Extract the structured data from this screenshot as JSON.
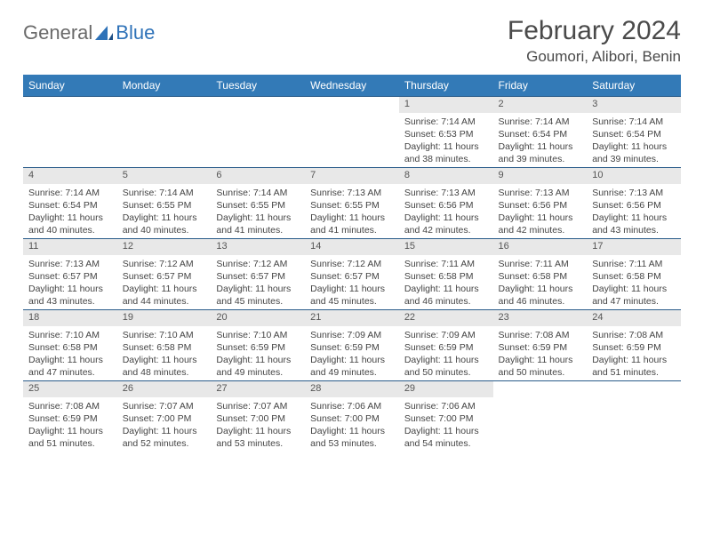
{
  "brand": {
    "part1": "General",
    "part2": "Blue"
  },
  "title": "February 2024",
  "location": "Goumori, Alibori, Benin",
  "colors": {
    "header_bg": "#337ab7",
    "header_text": "#ffffff",
    "daynum_bg": "#e8e8e8",
    "border": "#2a5c8a",
    "body_text": "#444444",
    "title_text": "#4a4a4a",
    "logo_gray": "#6a6a6a",
    "logo_blue": "#2e72b8"
  },
  "typography": {
    "title_fontsize": 30,
    "location_fontsize": 17,
    "header_fontsize": 12,
    "daynum_fontsize": 11,
    "detail_fontsize": 10.5
  },
  "days_of_week": [
    "Sunday",
    "Monday",
    "Tuesday",
    "Wednesday",
    "Thursday",
    "Friday",
    "Saturday"
  ],
  "weeks": [
    [
      null,
      null,
      null,
      null,
      {
        "num": "1",
        "sunrise": "Sunrise: 7:14 AM",
        "sunset": "Sunset: 6:53 PM",
        "daylight": "Daylight: 11 hours and 38 minutes."
      },
      {
        "num": "2",
        "sunrise": "Sunrise: 7:14 AM",
        "sunset": "Sunset: 6:54 PM",
        "daylight": "Daylight: 11 hours and 39 minutes."
      },
      {
        "num": "3",
        "sunrise": "Sunrise: 7:14 AM",
        "sunset": "Sunset: 6:54 PM",
        "daylight": "Daylight: 11 hours and 39 minutes."
      }
    ],
    [
      {
        "num": "4",
        "sunrise": "Sunrise: 7:14 AM",
        "sunset": "Sunset: 6:54 PM",
        "daylight": "Daylight: 11 hours and 40 minutes."
      },
      {
        "num": "5",
        "sunrise": "Sunrise: 7:14 AM",
        "sunset": "Sunset: 6:55 PM",
        "daylight": "Daylight: 11 hours and 40 minutes."
      },
      {
        "num": "6",
        "sunrise": "Sunrise: 7:14 AM",
        "sunset": "Sunset: 6:55 PM",
        "daylight": "Daylight: 11 hours and 41 minutes."
      },
      {
        "num": "7",
        "sunrise": "Sunrise: 7:13 AM",
        "sunset": "Sunset: 6:55 PM",
        "daylight": "Daylight: 11 hours and 41 minutes."
      },
      {
        "num": "8",
        "sunrise": "Sunrise: 7:13 AM",
        "sunset": "Sunset: 6:56 PM",
        "daylight": "Daylight: 11 hours and 42 minutes."
      },
      {
        "num": "9",
        "sunrise": "Sunrise: 7:13 AM",
        "sunset": "Sunset: 6:56 PM",
        "daylight": "Daylight: 11 hours and 42 minutes."
      },
      {
        "num": "10",
        "sunrise": "Sunrise: 7:13 AM",
        "sunset": "Sunset: 6:56 PM",
        "daylight": "Daylight: 11 hours and 43 minutes."
      }
    ],
    [
      {
        "num": "11",
        "sunrise": "Sunrise: 7:13 AM",
        "sunset": "Sunset: 6:57 PM",
        "daylight": "Daylight: 11 hours and 43 minutes."
      },
      {
        "num": "12",
        "sunrise": "Sunrise: 7:12 AM",
        "sunset": "Sunset: 6:57 PM",
        "daylight": "Daylight: 11 hours and 44 minutes."
      },
      {
        "num": "13",
        "sunrise": "Sunrise: 7:12 AM",
        "sunset": "Sunset: 6:57 PM",
        "daylight": "Daylight: 11 hours and 45 minutes."
      },
      {
        "num": "14",
        "sunrise": "Sunrise: 7:12 AM",
        "sunset": "Sunset: 6:57 PM",
        "daylight": "Daylight: 11 hours and 45 minutes."
      },
      {
        "num": "15",
        "sunrise": "Sunrise: 7:11 AM",
        "sunset": "Sunset: 6:58 PM",
        "daylight": "Daylight: 11 hours and 46 minutes."
      },
      {
        "num": "16",
        "sunrise": "Sunrise: 7:11 AM",
        "sunset": "Sunset: 6:58 PM",
        "daylight": "Daylight: 11 hours and 46 minutes."
      },
      {
        "num": "17",
        "sunrise": "Sunrise: 7:11 AM",
        "sunset": "Sunset: 6:58 PM",
        "daylight": "Daylight: 11 hours and 47 minutes."
      }
    ],
    [
      {
        "num": "18",
        "sunrise": "Sunrise: 7:10 AM",
        "sunset": "Sunset: 6:58 PM",
        "daylight": "Daylight: 11 hours and 47 minutes."
      },
      {
        "num": "19",
        "sunrise": "Sunrise: 7:10 AM",
        "sunset": "Sunset: 6:58 PM",
        "daylight": "Daylight: 11 hours and 48 minutes."
      },
      {
        "num": "20",
        "sunrise": "Sunrise: 7:10 AM",
        "sunset": "Sunset: 6:59 PM",
        "daylight": "Daylight: 11 hours and 49 minutes."
      },
      {
        "num": "21",
        "sunrise": "Sunrise: 7:09 AM",
        "sunset": "Sunset: 6:59 PM",
        "daylight": "Daylight: 11 hours and 49 minutes."
      },
      {
        "num": "22",
        "sunrise": "Sunrise: 7:09 AM",
        "sunset": "Sunset: 6:59 PM",
        "daylight": "Daylight: 11 hours and 50 minutes."
      },
      {
        "num": "23",
        "sunrise": "Sunrise: 7:08 AM",
        "sunset": "Sunset: 6:59 PM",
        "daylight": "Daylight: 11 hours and 50 minutes."
      },
      {
        "num": "24",
        "sunrise": "Sunrise: 7:08 AM",
        "sunset": "Sunset: 6:59 PM",
        "daylight": "Daylight: 11 hours and 51 minutes."
      }
    ],
    [
      {
        "num": "25",
        "sunrise": "Sunrise: 7:08 AM",
        "sunset": "Sunset: 6:59 PM",
        "daylight": "Daylight: 11 hours and 51 minutes."
      },
      {
        "num": "26",
        "sunrise": "Sunrise: 7:07 AM",
        "sunset": "Sunset: 7:00 PM",
        "daylight": "Daylight: 11 hours and 52 minutes."
      },
      {
        "num": "27",
        "sunrise": "Sunrise: 7:07 AM",
        "sunset": "Sunset: 7:00 PM",
        "daylight": "Daylight: 11 hours and 53 minutes."
      },
      {
        "num": "28",
        "sunrise": "Sunrise: 7:06 AM",
        "sunset": "Sunset: 7:00 PM",
        "daylight": "Daylight: 11 hours and 53 minutes."
      },
      {
        "num": "29",
        "sunrise": "Sunrise: 7:06 AM",
        "sunset": "Sunset: 7:00 PM",
        "daylight": "Daylight: 11 hours and 54 minutes."
      },
      null,
      null
    ]
  ]
}
